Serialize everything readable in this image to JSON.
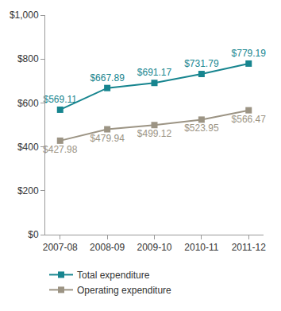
{
  "chart_data": {
    "type": "line",
    "categories": [
      "2007-08",
      "2008-09",
      "2009-10",
      "2010-11",
      "2011-12"
    ],
    "series": [
      {
        "name": "Total expenditure",
        "color": "#17858f",
        "values": [
          569.11,
          667.89,
          691.17,
          731.79,
          779.19
        ],
        "value_labels": [
          "$569.11",
          "$667.89",
          "$691.17",
          "$731.79",
          "$779.19"
        ]
      },
      {
        "name": "Operating expenditure",
        "color": "#9c9484",
        "values": [
          427.98,
          479.94,
          499.12,
          523.95,
          566.47
        ],
        "value_labels": [
          "$427.98",
          "$479.94",
          "$499.12",
          "$523.95",
          "$566.47"
        ]
      }
    ],
    "ylim": [
      0,
      1000
    ],
    "yticks": [
      {
        "value": 0,
        "label": "$0"
      },
      {
        "value": 200,
        "label": "$200"
      },
      {
        "value": 400,
        "label": "$400"
      },
      {
        "value": 600,
        "label": "$600"
      },
      {
        "value": 800,
        "label": "$800"
      },
      {
        "value": 1000,
        "label": "$1,000"
      }
    ],
    "grid": false,
    "legend": "bottom",
    "data_labels": true,
    "marker": "square"
  }
}
